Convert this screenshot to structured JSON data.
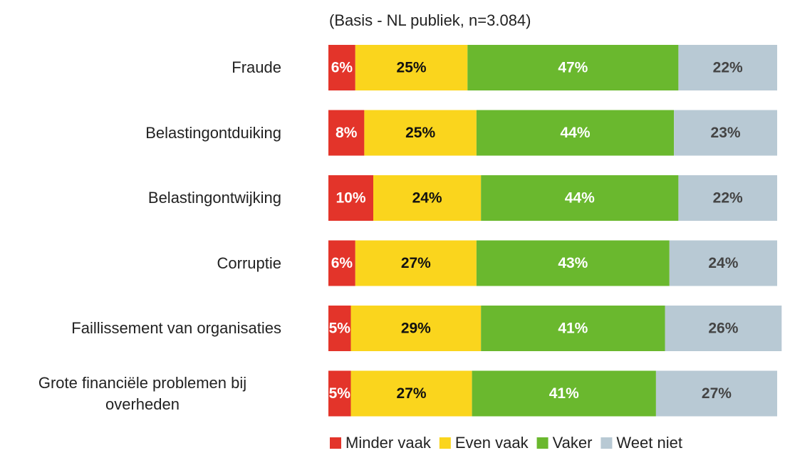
{
  "chart_data": {
    "type": "stacked-bar-horizontal",
    "subtitle": "(Basis - NL publiek, n=3.084)",
    "categories": [
      "Fraude",
      "Belastingontduiking",
      "Belastingontwijking",
      "Corruptie",
      "Faillissement van organisaties",
      "Grote financiële problemen bij overheden"
    ],
    "series": [
      {
        "name": "Minder vaak",
        "color": "#e3342a",
        "values": [
          6,
          8,
          10,
          6,
          5,
          5
        ],
        "value_labels": [
          "6%",
          "8%",
          "10%",
          "6%",
          "5%",
          "5%"
        ]
      },
      {
        "name": "Even vaak",
        "color": "#fad51d",
        "values": [
          25,
          25,
          24,
          27,
          29,
          27
        ],
        "value_labels": [
          "25%",
          "25%",
          "24%",
          "27%",
          "29%",
          "27%"
        ]
      },
      {
        "name": "Vaker",
        "color": "#6ab82e",
        "values": [
          47,
          44,
          44,
          43,
          41,
          41
        ],
        "value_labels": [
          "47%",
          "44%",
          "44%",
          "43%",
          "41%",
          "41%"
        ]
      },
      {
        "name": "Weet niet",
        "color": "#b8c9d4",
        "values": [
          22,
          23,
          22,
          24,
          26,
          27
        ],
        "value_labels": [
          "22%",
          "23%",
          "22%",
          "24%",
          "26%",
          "27%"
        ]
      }
    ],
    "xlim": [
      0,
      100
    ]
  }
}
